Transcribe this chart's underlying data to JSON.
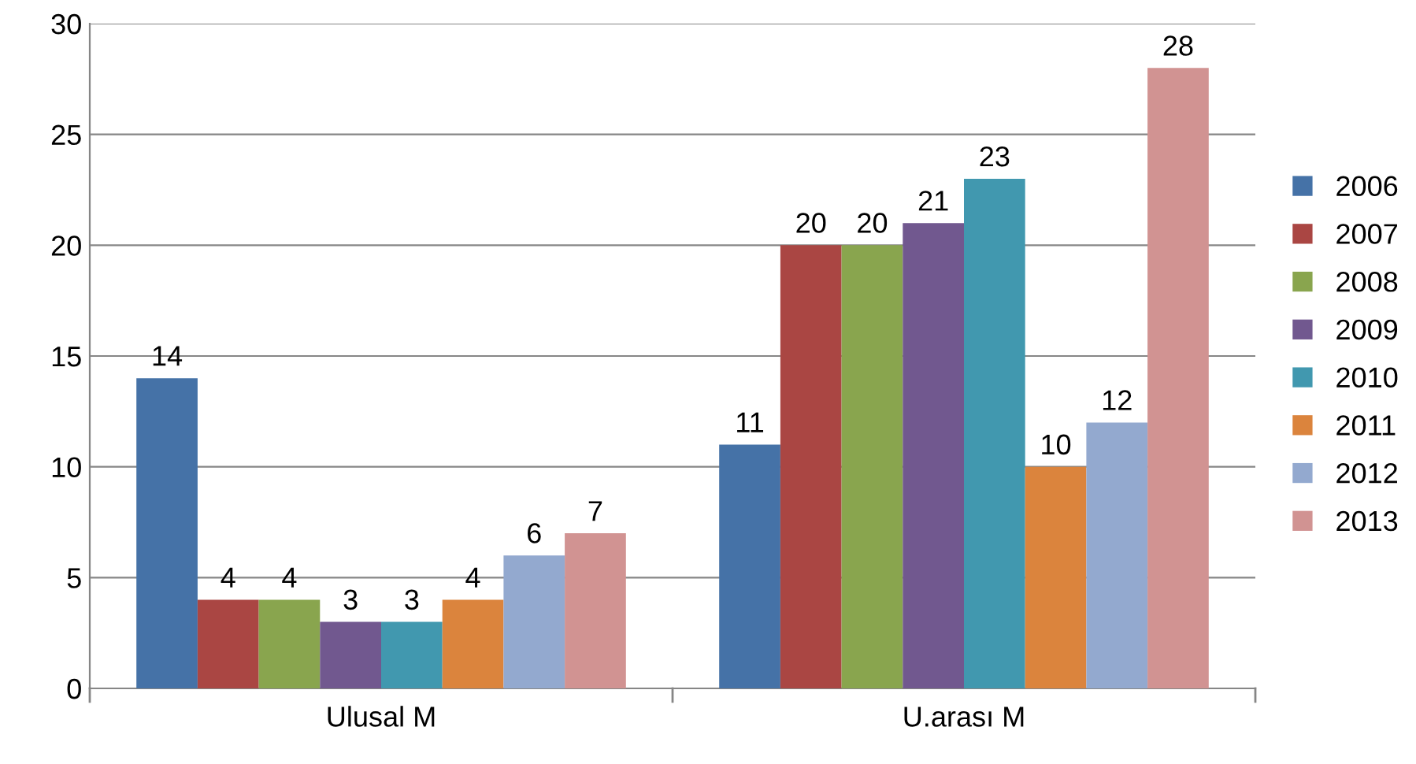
{
  "chart_data": {
    "type": "bar",
    "categories": [
      "Ulusal M",
      "U.arası M"
    ],
    "series": [
      {
        "name": "2006",
        "color": "#4572a7",
        "values": [
          14,
          11
        ]
      },
      {
        "name": "2007",
        "color": "#aa4643",
        "values": [
          4,
          20
        ]
      },
      {
        "name": "2008",
        "color": "#89a54e",
        "values": [
          4,
          20
        ]
      },
      {
        "name": "2009",
        "color": "#71588f",
        "values": [
          3,
          21
        ]
      },
      {
        "name": "2010",
        "color": "#4198af",
        "values": [
          3,
          23
        ]
      },
      {
        "name": "2011",
        "color": "#db843d",
        "values": [
          4,
          10
        ]
      },
      {
        "name": "2012",
        "color": "#93a9cf",
        "values": [
          6,
          12
        ]
      },
      {
        "name": "2013",
        "color": "#d19392",
        "values": [
          7,
          28
        ]
      }
    ],
    "ylim": [
      0,
      30
    ],
    "yticks": [
      0,
      5,
      10,
      15,
      20,
      25,
      30
    ],
    "grid": "y",
    "legend": "right",
    "data_labels": true
  }
}
